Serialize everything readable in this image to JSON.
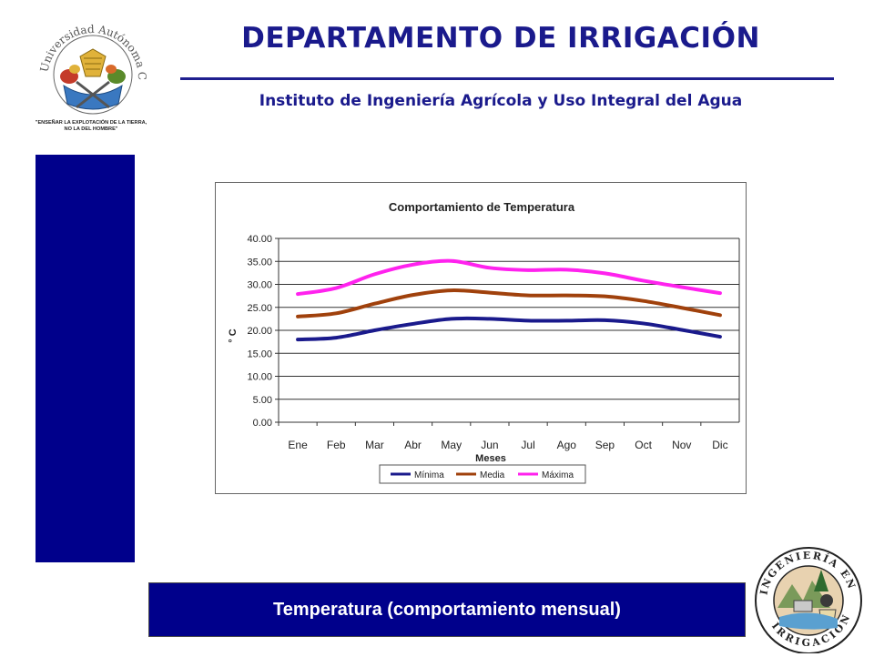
{
  "header": {
    "title": "DEPARTAMENTO  DE IRRIGACIÓN",
    "subtitle": "Instituto de Ingeniería Agrícola y Uso Integral del Agua"
  },
  "logo_left": {
    "ring_text": "Universidad Autónoma Chapingo",
    "motto_line1": "\"ENSEÑAR LA EXPLOTACIÓN DE LA TIERRA,",
    "motto_line2": "NO LA DEL HOMBRE\""
  },
  "logo_right": {
    "ring_top": "INGENIERÍA EN",
    "ring_bottom": "IRRIGACIÓN"
  },
  "footer": {
    "label": "Temperatura (comportamiento mensual)"
  },
  "colors": {
    "brand_blue": "#00008b",
    "minima": "#1a1a8c",
    "media": "#a0410c",
    "maxima": "#ff22ee"
  },
  "chart_data": {
    "type": "line",
    "title": "Comportamiento de Temperatura",
    "xlabel": "Meses",
    "ylabel": "° C",
    "categories": [
      "Ene",
      "Feb",
      "Mar",
      "Abr",
      "May",
      "Jun",
      "Jul",
      "Ago",
      "Sep",
      "Oct",
      "Nov",
      "Dic"
    ],
    "ylim": [
      0,
      40
    ],
    "yticks": [
      "0.00",
      "5.00",
      "10.00",
      "15.00",
      "20.00",
      "25.00",
      "30.00",
      "35.00",
      "40.00"
    ],
    "grid": true,
    "legend_position": "bottom",
    "series": [
      {
        "name": "Mínima",
        "color": "#1a1a8c",
        "values": [
          18.0,
          18.4,
          20.0,
          21.4,
          22.5,
          22.5,
          22.1,
          22.1,
          22.2,
          21.5,
          20.1,
          18.6
        ]
      },
      {
        "name": "Media",
        "color": "#a0410c",
        "values": [
          23.0,
          23.7,
          25.8,
          27.7,
          28.7,
          28.2,
          27.6,
          27.6,
          27.4,
          26.4,
          24.9,
          23.3
        ]
      },
      {
        "name": "Máxima",
        "color": "#ff22ee",
        "values": [
          27.9,
          29.2,
          32.2,
          34.3,
          35.1,
          33.6,
          33.1,
          33.2,
          32.4,
          30.8,
          29.4,
          28.1
        ]
      }
    ]
  }
}
